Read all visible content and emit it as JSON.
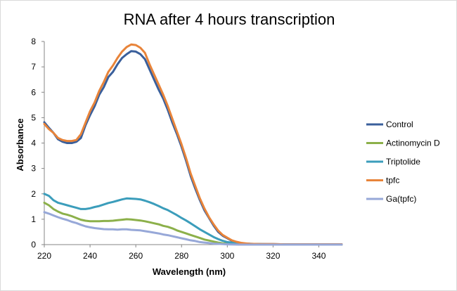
{
  "chart_data": {
    "type": "line",
    "title": "RNA after 4 hours transcription",
    "xlabel": "Wavelength (nm)",
    "ylabel": "Absorbance",
    "xlim": [
      220,
      350
    ],
    "ylim": [
      0,
      8
    ],
    "x_ticks": [
      "220",
      "240",
      "260",
      "280",
      "300",
      "320",
      "340"
    ],
    "y_ticks": [
      "0",
      "1",
      "2",
      "3",
      "4",
      "5",
      "6",
      "7",
      "8"
    ],
    "grid": false,
    "legend_position": "right",
    "series": [
      {
        "name": "Control",
        "color": "#3A5F9B",
        "x": [
          220,
          222,
          224,
          226,
          228,
          230,
          232,
          234,
          236,
          238,
          240,
          242,
          244,
          246,
          248,
          250,
          252,
          254,
          256,
          258,
          260,
          262,
          264,
          266,
          268,
          270,
          272,
          274,
          276,
          278,
          280,
          282,
          284,
          286,
          288,
          290,
          292,
          294,
          296,
          298,
          300,
          302,
          304,
          306,
          308,
          310,
          315,
          320,
          325,
          330,
          335,
          340,
          345,
          350
        ],
        "y": [
          4.82,
          4.6,
          4.4,
          4.15,
          4.05,
          4.0,
          4.0,
          4.05,
          4.2,
          4.7,
          5.1,
          5.45,
          5.9,
          6.2,
          6.6,
          6.8,
          7.1,
          7.35,
          7.5,
          7.62,
          7.6,
          7.5,
          7.3,
          6.9,
          6.5,
          6.1,
          5.75,
          5.3,
          4.8,
          4.35,
          3.85,
          3.3,
          2.7,
          2.2,
          1.75,
          1.35,
          1.05,
          0.75,
          0.5,
          0.35,
          0.25,
          0.15,
          0.1,
          0.06,
          0.04,
          0.03,
          0.02,
          0.02,
          0.01,
          0.01,
          0.01,
          0.01,
          0.01,
          0.01
        ]
      },
      {
        "name": "Actinomycin D",
        "color": "#8CB04A",
        "x": [
          220,
          222,
          224,
          226,
          228,
          230,
          232,
          234,
          236,
          238,
          240,
          242,
          244,
          246,
          248,
          250,
          252,
          254,
          256,
          258,
          260,
          262,
          264,
          266,
          268,
          270,
          272,
          274,
          276,
          278,
          280,
          282,
          284,
          286,
          288,
          290,
          292,
          294,
          296,
          298,
          300,
          305,
          310,
          320,
          330,
          340,
          350
        ],
        "y": [
          1.65,
          1.55,
          1.4,
          1.3,
          1.22,
          1.18,
          1.12,
          1.05,
          0.98,
          0.94,
          0.92,
          0.92,
          0.92,
          0.93,
          0.93,
          0.94,
          0.96,
          0.98,
          1.0,
          0.99,
          0.97,
          0.95,
          0.92,
          0.88,
          0.84,
          0.8,
          0.74,
          0.7,
          0.64,
          0.56,
          0.5,
          0.44,
          0.38,
          0.32,
          0.26,
          0.2,
          0.16,
          0.12,
          0.08,
          0.05,
          0.04,
          0.02,
          0.01,
          0.0,
          0.0,
          0.0,
          0.0
        ]
      },
      {
        "name": "Triptolide",
        "color": "#3B9DBB",
        "x": [
          220,
          222,
          224,
          226,
          228,
          230,
          232,
          234,
          236,
          238,
          240,
          242,
          244,
          246,
          248,
          250,
          252,
          254,
          256,
          258,
          260,
          262,
          264,
          266,
          268,
          270,
          272,
          274,
          276,
          278,
          280,
          282,
          284,
          286,
          288,
          290,
          292,
          294,
          296,
          298,
          300,
          305,
          310,
          320,
          330,
          340,
          350
        ],
        "y": [
          2.0,
          1.92,
          1.75,
          1.65,
          1.6,
          1.55,
          1.5,
          1.45,
          1.4,
          1.4,
          1.43,
          1.48,
          1.52,
          1.58,
          1.64,
          1.68,
          1.73,
          1.78,
          1.82,
          1.81,
          1.8,
          1.78,
          1.73,
          1.67,
          1.6,
          1.52,
          1.43,
          1.36,
          1.26,
          1.16,
          1.05,
          0.95,
          0.84,
          0.72,
          0.6,
          0.5,
          0.4,
          0.3,
          0.22,
          0.15,
          0.1,
          0.05,
          0.03,
          0.01,
          0.0,
          0.0,
          0.0
        ]
      },
      {
        "name": "tpfc",
        "color": "#E8843A",
        "x": [
          220,
          222,
          224,
          226,
          228,
          230,
          232,
          234,
          236,
          238,
          240,
          242,
          244,
          246,
          248,
          250,
          252,
          254,
          256,
          258,
          260,
          262,
          264,
          266,
          268,
          270,
          272,
          274,
          276,
          278,
          280,
          282,
          284,
          286,
          288,
          290,
          292,
          294,
          296,
          298,
          300,
          302,
          304,
          306,
          308,
          310,
          315,
          320,
          325,
          330,
          335,
          340,
          345,
          350
        ],
        "y": [
          4.75,
          4.55,
          4.4,
          4.2,
          4.12,
          4.08,
          4.08,
          4.12,
          4.35,
          4.8,
          5.25,
          5.6,
          6.05,
          6.4,
          6.8,
          7.05,
          7.35,
          7.6,
          7.78,
          7.88,
          7.86,
          7.75,
          7.55,
          7.1,
          6.7,
          6.3,
          5.9,
          5.45,
          4.95,
          4.45,
          3.95,
          3.4,
          2.8,
          2.3,
          1.82,
          1.42,
          1.08,
          0.8,
          0.55,
          0.38,
          0.27,
          0.17,
          0.11,
          0.07,
          0.05,
          0.03,
          0.02,
          0.02,
          0.01,
          0.01,
          0.01,
          0.01,
          0.01,
          0.01
        ]
      },
      {
        "name": "Ga(tpfc)",
        "color": "#97A8D8",
        "x": [
          220,
          222,
          224,
          226,
          228,
          230,
          232,
          234,
          236,
          238,
          240,
          242,
          244,
          246,
          248,
          250,
          252,
          254,
          256,
          258,
          260,
          262,
          264,
          266,
          268,
          270,
          272,
          274,
          276,
          278,
          280,
          282,
          284,
          286,
          288,
          290,
          292,
          294,
          296,
          298,
          300,
          305,
          310,
          320,
          330,
          340,
          350
        ],
        "y": [
          1.28,
          1.22,
          1.15,
          1.08,
          1.02,
          0.97,
          0.9,
          0.85,
          0.78,
          0.72,
          0.68,
          0.65,
          0.63,
          0.61,
          0.6,
          0.6,
          0.59,
          0.6,
          0.6,
          0.58,
          0.57,
          0.56,
          0.53,
          0.5,
          0.47,
          0.44,
          0.4,
          0.37,
          0.33,
          0.29,
          0.25,
          0.21,
          0.17,
          0.14,
          0.1,
          0.08,
          0.06,
          0.04,
          0.03,
          0.02,
          0.01,
          0.0,
          0.0,
          0.0,
          0.0,
          0.0,
          0.0
        ]
      }
    ]
  }
}
